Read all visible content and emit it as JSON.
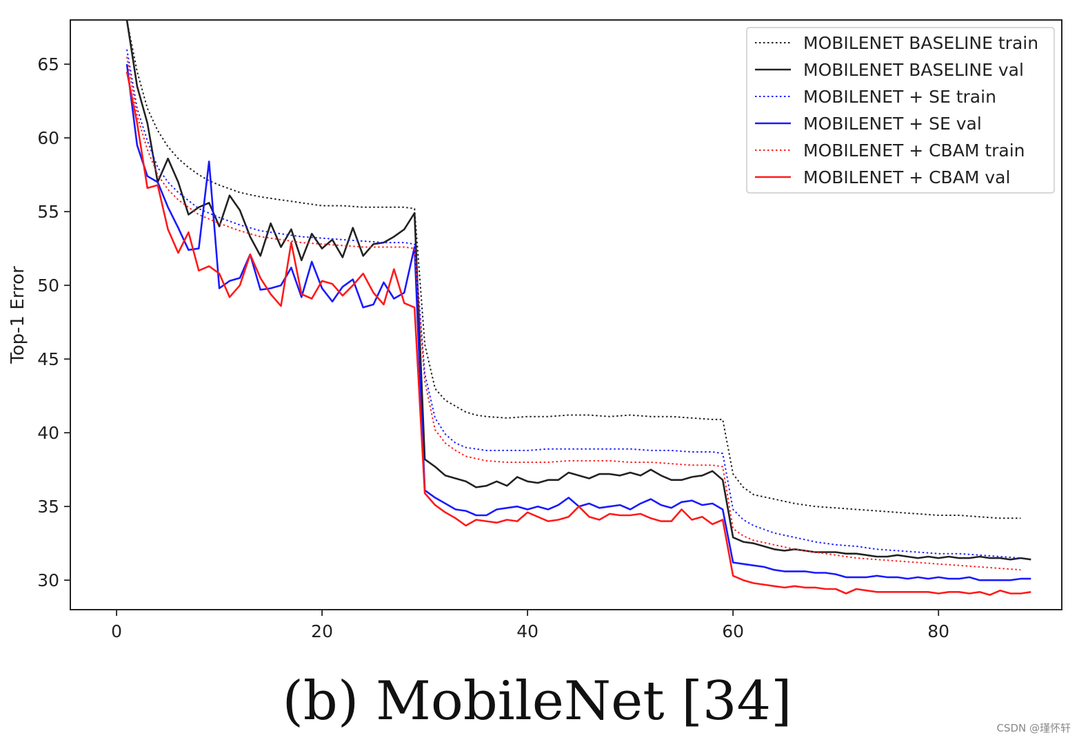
{
  "chart_data": {
    "type": "line",
    "title": "",
    "xlabel": "",
    "ylabel": "Top-1 Error",
    "xlim": [
      -4.5,
      92
    ],
    "ylim": [
      28,
      68
    ],
    "xticks": [
      0,
      20,
      40,
      60,
      80
    ],
    "yticks": [
      30,
      35,
      40,
      45,
      50,
      55,
      60,
      65
    ],
    "grid": false,
    "legend_position": "top-right",
    "series": [
      {
        "name": "MOBILENET BASELINE train",
        "color": "#222222",
        "style": "dotted",
        "x": [
          1,
          2,
          3,
          4,
          5,
          6,
          7,
          8,
          9,
          10,
          12,
          14,
          16,
          18,
          20,
          22,
          24,
          26,
          28,
          29,
          30,
          31,
          32,
          33,
          34,
          35,
          36,
          38,
          40,
          42,
          44,
          46,
          48,
          50,
          52,
          54,
          56,
          58,
          59,
          60,
          61,
          62,
          64,
          66,
          68,
          70,
          72,
          74,
          76,
          78,
          80,
          82,
          84,
          86,
          88
        ],
        "y": [
          68,
          64.5,
          62,
          60.5,
          59.4,
          58.6,
          58,
          57.5,
          57.1,
          56.8,
          56.3,
          56,
          55.8,
          55.6,
          55.4,
          55.4,
          55.3,
          55.3,
          55.3,
          55.2,
          46,
          43,
          42.2,
          41.8,
          41.4,
          41.2,
          41.1,
          41,
          41.1,
          41.1,
          41.2,
          41.2,
          41.1,
          41.2,
          41.1,
          41.1,
          41,
          40.9,
          40.9,
          37.2,
          36.3,
          35.8,
          35.5,
          35.2,
          35,
          34.9,
          34.8,
          34.7,
          34.6,
          34.5,
          34.4,
          34.4,
          34.3,
          34.2,
          34.2
        ]
      },
      {
        "name": "MOBILENET BASELINE val",
        "color": "#222222",
        "style": "solid",
        "x": [
          1,
          2,
          3,
          4,
          5,
          6,
          7,
          8,
          9,
          10,
          11,
          12,
          13,
          14,
          15,
          16,
          17,
          18,
          19,
          20,
          21,
          22,
          23,
          24,
          25,
          26,
          27,
          28,
          29,
          30,
          31,
          32,
          33,
          34,
          35,
          36,
          37,
          38,
          39,
          40,
          41,
          42,
          43,
          44,
          45,
          46,
          47,
          48,
          49,
          50,
          51,
          52,
          53,
          54,
          55,
          56,
          57,
          58,
          59,
          60,
          61,
          62,
          63,
          64,
          65,
          66,
          67,
          68,
          69,
          70,
          71,
          72,
          73,
          74,
          75,
          76,
          77,
          78,
          79,
          80,
          81,
          82,
          83,
          84,
          85,
          86,
          87,
          88,
          89
        ],
        "y": [
          68,
          63.5,
          61,
          57,
          58.6,
          57,
          54.8,
          55.3,
          55.6,
          54,
          56.1,
          55.1,
          53.3,
          52,
          54.2,
          52.6,
          53.8,
          51.7,
          53.5,
          52.5,
          53.1,
          51.9,
          53.9,
          52,
          52.8,
          52.9,
          53.3,
          53.8,
          54.9,
          38.2,
          37.7,
          37.1,
          36.9,
          36.7,
          36.3,
          36.4,
          36.7,
          36.4,
          37,
          36.7,
          36.6,
          36.8,
          36.8,
          37.3,
          37.1,
          36.9,
          37.2,
          37.2,
          37.1,
          37.3,
          37.1,
          37.5,
          37.1,
          36.8,
          36.8,
          37,
          37.1,
          37.4,
          36.8,
          32.9,
          32.6,
          32.5,
          32.3,
          32.1,
          32,
          32.1,
          32,
          31.9,
          31.9,
          31.9,
          31.8,
          31.8,
          31.7,
          31.6,
          31.6,
          31.7,
          31.6,
          31.5,
          31.6,
          31.5,
          31.6,
          31.5,
          31.5,
          31.6,
          31.5,
          31.5,
          31.4,
          31.5,
          31.4
        ]
      },
      {
        "name": "MOBILENET + SE train",
        "color": "#2222ff",
        "style": "dotted",
        "x": [
          1,
          2,
          3,
          4,
          5,
          6,
          8,
          10,
          12,
          14,
          16,
          18,
          20,
          22,
          24,
          26,
          28,
          29,
          30,
          31,
          32,
          33,
          34,
          36,
          38,
          40,
          42,
          44,
          46,
          48,
          50,
          52,
          54,
          56,
          58,
          59,
          60,
          61,
          62,
          64,
          66,
          68,
          70,
          72,
          74,
          76,
          78,
          80,
          82,
          84,
          86,
          88
        ],
        "y": [
          66,
          62,
          59.8,
          58,
          57,
          56.3,
          55.2,
          54.6,
          54.1,
          53.7,
          53.5,
          53.3,
          53.2,
          53.1,
          53,
          52.9,
          52.9,
          52.8,
          44,
          41,
          39.9,
          39.3,
          39,
          38.8,
          38.8,
          38.8,
          38.9,
          38.9,
          38.9,
          38.9,
          38.9,
          38.8,
          38.8,
          38.7,
          38.7,
          38.6,
          34.8,
          34.1,
          33.7,
          33.2,
          32.9,
          32.6,
          32.4,
          32.3,
          32.1,
          32,
          31.9,
          31.8,
          31.8,
          31.7,
          31.6,
          31.5
        ]
      },
      {
        "name": "MOBILENET + SE val",
        "color": "#1a1aff",
        "style": "solid",
        "x": [
          1,
          2,
          3,
          4,
          5,
          6,
          7,
          8,
          9,
          10,
          11,
          12,
          13,
          14,
          15,
          16,
          17,
          18,
          19,
          20,
          21,
          22,
          23,
          24,
          25,
          26,
          27,
          28,
          29,
          30,
          31,
          32,
          33,
          34,
          35,
          36,
          37,
          38,
          39,
          40,
          41,
          42,
          43,
          44,
          45,
          46,
          47,
          48,
          49,
          50,
          51,
          52,
          53,
          54,
          55,
          56,
          57,
          58,
          59,
          60,
          61,
          62,
          63,
          64,
          65,
          66,
          67,
          68,
          69,
          70,
          71,
          72,
          73,
          74,
          75,
          76,
          77,
          78,
          79,
          80,
          81,
          82,
          83,
          84,
          85,
          86,
          87,
          88,
          89
        ],
        "y": [
          65,
          59.5,
          57.4,
          57,
          55.3,
          53.9,
          52.4,
          52.5,
          58.4,
          49.8,
          50.3,
          50.5,
          52.1,
          49.7,
          49.8,
          50,
          51.2,
          49.2,
          51.6,
          49.8,
          48.9,
          49.9,
          50.4,
          48.5,
          48.7,
          50.2,
          49.1,
          49.5,
          52.6,
          36.1,
          35.6,
          35.2,
          34.8,
          34.7,
          34.4,
          34.4,
          34.8,
          34.9,
          35,
          34.8,
          35,
          34.8,
          35.1,
          35.6,
          35,
          35.2,
          34.9,
          35,
          35.1,
          34.8,
          35.2,
          35.5,
          35.1,
          34.9,
          35.3,
          35.4,
          35.1,
          35.2,
          34.8,
          31.2,
          31.1,
          31,
          30.9,
          30.7,
          30.6,
          30.6,
          30.6,
          30.5,
          30.5,
          30.4,
          30.2,
          30.2,
          30.2,
          30.3,
          30.2,
          30.2,
          30.1,
          30.2,
          30.1,
          30.2,
          30.1,
          30.1,
          30.2,
          30,
          30,
          30,
          30,
          30.1,
          30.1
        ]
      },
      {
        "name": "MOBILENET + CBAM train",
        "color": "#ff2222",
        "style": "dotted",
        "x": [
          1,
          2,
          3,
          4,
          5,
          6,
          8,
          10,
          12,
          14,
          16,
          18,
          20,
          22,
          24,
          26,
          28,
          29,
          30,
          31,
          32,
          33,
          34,
          36,
          38,
          40,
          42,
          44,
          46,
          48,
          50,
          52,
          54,
          56,
          58,
          59,
          60,
          61,
          62,
          64,
          66,
          68,
          70,
          72,
          74,
          76,
          78,
          80,
          82,
          84,
          86,
          88
        ],
        "y": [
          65.5,
          61.5,
          59.2,
          57.5,
          56.5,
          55.8,
          54.8,
          54.2,
          53.7,
          53.3,
          53.1,
          52.9,
          52.8,
          52.7,
          52.6,
          52.6,
          52.6,
          52.5,
          43.5,
          40.2,
          39.3,
          38.8,
          38.4,
          38.1,
          38,
          38,
          38,
          38.1,
          38.1,
          38.1,
          38,
          38,
          37.9,
          37.8,
          37.8,
          37.7,
          33.5,
          33,
          32.7,
          32.4,
          32.1,
          31.9,
          31.7,
          31.5,
          31.4,
          31.3,
          31.2,
          31.1,
          31,
          30.9,
          30.8,
          30.7
        ]
      },
      {
        "name": "MOBILENET + CBAM val",
        "color": "#ff1a1a",
        "style": "solid",
        "x": [
          1,
          2,
          3,
          4,
          5,
          6,
          7,
          8,
          9,
          10,
          11,
          12,
          13,
          14,
          15,
          16,
          17,
          18,
          19,
          20,
          21,
          22,
          23,
          24,
          25,
          26,
          27,
          28,
          29,
          30,
          31,
          32,
          33,
          34,
          35,
          36,
          37,
          38,
          39,
          40,
          41,
          42,
          43,
          44,
          45,
          46,
          47,
          48,
          49,
          50,
          51,
          52,
          53,
          54,
          55,
          56,
          57,
          58,
          59,
          60,
          61,
          62,
          63,
          64,
          65,
          66,
          67,
          68,
          69,
          70,
          71,
          72,
          73,
          74,
          75,
          76,
          77,
          78,
          79,
          80,
          81,
          82,
          83,
          84,
          85,
          86,
          87,
          88,
          89
        ],
        "y": [
          64.5,
          61,
          56.6,
          56.8,
          53.8,
          52.2,
          53.6,
          51,
          51.3,
          50.8,
          49.2,
          50,
          52.1,
          50.5,
          49.4,
          48.6,
          52.9,
          49.4,
          49.1,
          50.3,
          50.1,
          49.3,
          50,
          50.8,
          49.5,
          48.7,
          51.1,
          48.8,
          48.5,
          35.9,
          35.1,
          34.6,
          34.2,
          33.7,
          34.1,
          34,
          33.9,
          34.1,
          34,
          34.6,
          34.3,
          34,
          34.1,
          34.3,
          35,
          34.3,
          34.1,
          34.5,
          34.4,
          34.4,
          34.5,
          34.2,
          34,
          34,
          34.8,
          34.1,
          34.3,
          33.8,
          34.1,
          30.3,
          30,
          29.8,
          29.7,
          29.6,
          29.5,
          29.6,
          29.5,
          29.5,
          29.4,
          29.4,
          29.1,
          29.4,
          29.3,
          29.2,
          29.2,
          29.2,
          29.2,
          29.2,
          29.2,
          29.1,
          29.2,
          29.2,
          29.1,
          29.2,
          29,
          29.3,
          29.1,
          29.1,
          29.2
        ]
      }
    ]
  },
  "caption": "(b) MobileNet [34]",
  "watermark": "CSDN @瑾怀轩"
}
